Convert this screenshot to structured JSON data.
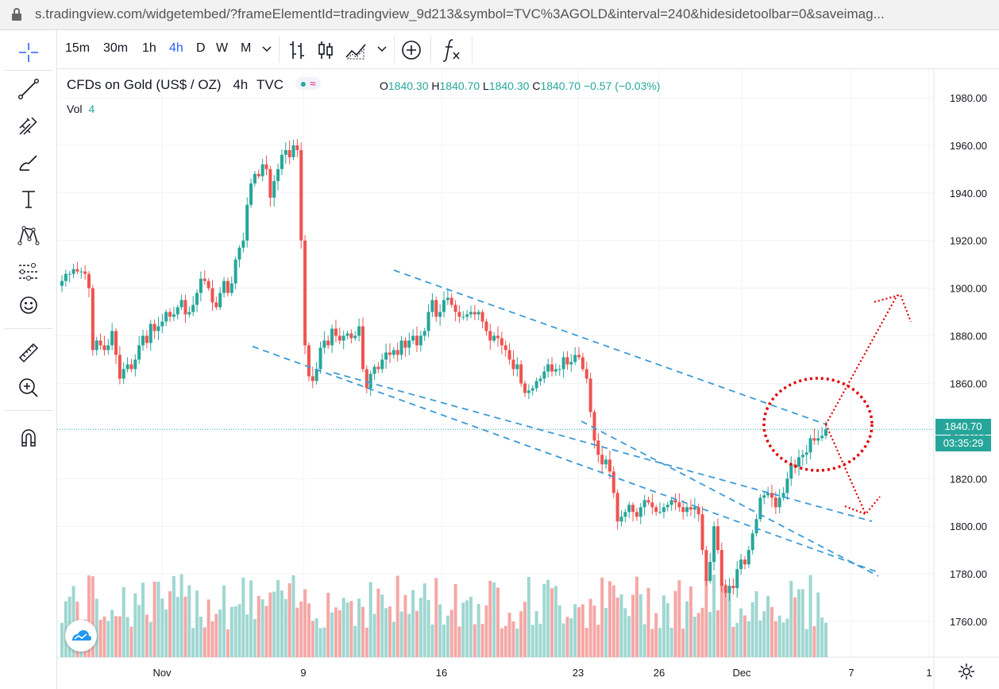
{
  "browser": {
    "url": "s.tradingview.com/widgetembed/?frameElementId=tradingview_9d213&symbol=TVC%3AGOLD&interval=240&hidesidetoolbar=0&saveimag..."
  },
  "toolbar": {
    "intervals": [
      "15m",
      "30m",
      "1h",
      "4h",
      "D",
      "W",
      "M"
    ],
    "active_interval": "4h",
    "icons": [
      "chevron-down-icon",
      "bar-chart-icon",
      "candles-icon",
      "area-chart-icon",
      "chevron-down-icon",
      "add-indicator-icon",
      "fx-icon"
    ]
  },
  "sidebar": {
    "tools": [
      "crosshair-icon",
      "trend-line-icon",
      "pitchfork-icon",
      "brush-icon",
      "text-icon",
      "pattern-icon",
      "forecast-icon",
      "emoji-icon",
      "ruler-icon",
      "zoom-in-icon",
      "magnet-icon"
    ]
  },
  "legend": {
    "symbol": "CFDs on Gold (US$ / OZ)",
    "interval": "4h",
    "source": "TVC",
    "indicator_icon": "≈",
    "o_label": "O",
    "o": "1840.30",
    "h_label": "H",
    "h": "1840.70",
    "l_label": "L",
    "l": "1840.30",
    "c_label": "C",
    "c": "1840.70",
    "change": "−0.57 (−0.03%)",
    "vol_label": "Vol",
    "vol_value": "4"
  },
  "price_label": "1840.70",
  "timer_label": "03:35:29",
  "colors": {
    "up": "#26a69a",
    "down": "#ef5350",
    "up_vol": "#9fd7d1",
    "down_vol": "#f4a8a6",
    "channel": "#3d9bd6",
    "annotation": "#e00000",
    "active": "#2962ff"
  },
  "chart_data": {
    "type": "candlestick",
    "ylim": [
      1745,
      1992
    ],
    "y_ticks": [
      "1980.00",
      "1960.00",
      "1940.00",
      "1920.00",
      "1900.00",
      "1880.00",
      "1860.00",
      "1840.00",
      "1820.00",
      "1800.00",
      "1780.00",
      "1760.00"
    ],
    "x_ticks": [
      "Nov",
      "9",
      "16",
      "23",
      "26",
      "Dec",
      "7",
      "1"
    ],
    "closes": [
      1903,
      1906,
      1906,
      1908,
      1907,
      1907,
      1906,
      1900,
      1874,
      1878,
      1876,
      1874,
      1876,
      1882,
      1872,
      1862,
      1866,
      1868,
      1866,
      1870,
      1876,
      1880,
      1877,
      1885,
      1882,
      1884,
      1886,
      1890,
      1888,
      1889,
      1892,
      1895,
      1889,
      1890,
      1893,
      1898,
      1904,
      1903,
      1900,
      1894,
      1892,
      1898,
      1903,
      1898,
      1902,
      1912,
      1917,
      1920,
      1935,
      1944,
      1948,
      1947,
      1952,
      1950,
      1938,
      1945,
      1950,
      1956,
      1958,
      1955,
      1960,
      1958,
      1920,
      1876,
      1863,
      1861,
      1866,
      1875,
      1878,
      1876,
      1883,
      1880,
      1878,
      1880,
      1881,
      1879,
      1880,
      1884,
      1866,
      1858,
      1864,
      1867,
      1866,
      1870,
      1873,
      1872,
      1874,
      1872,
      1878,
      1875,
      1878,
      1880,
      1876,
      1880,
      1882,
      1890,
      1895,
      1888,
      1890,
      1895,
      1896,
      1893,
      1890,
      1888,
      1888,
      1889,
      1890,
      1889,
      1890,
      1886,
      1882,
      1878,
      1880,
      1879,
      1876,
      1874,
      1870,
      1866,
      1868,
      1860,
      1856,
      1857,
      1858,
      1861,
      1862,
      1865,
      1868,
      1865,
      1866,
      1866,
      1871,
      1868,
      1869,
      1872,
      1871,
      1866,
      1862,
      1848,
      1836,
      1830,
      1826,
      1828,
      1823,
      1814,
      1802,
      1804,
      1806,
      1809,
      1806,
      1804,
      1808,
      1811,
      1810,
      1808,
      1806,
      1806,
      1808,
      1809,
      1811,
      1810,
      1808,
      1806,
      1808,
      1807,
      1808,
      1805,
      1790,
      1777,
      1785,
      1800,
      1790,
      1775,
      1772,
      1775,
      1774,
      1782,
      1786,
      1784,
      1790,
      1797,
      1803,
      1812,
      1813,
      1814,
      1812,
      1808,
      1812,
      1814,
      1820,
      1826,
      1825,
      1829,
      1830,
      1831,
      1837,
      1836,
      1837,
      1838,
      1840.7
    ],
    "volumes_visible": true
  },
  "annotations": {
    "channel_lines": 4,
    "ellipse": "dotted-circle",
    "arrows": [
      "up-arrow",
      "down-arrow"
    ]
  }
}
